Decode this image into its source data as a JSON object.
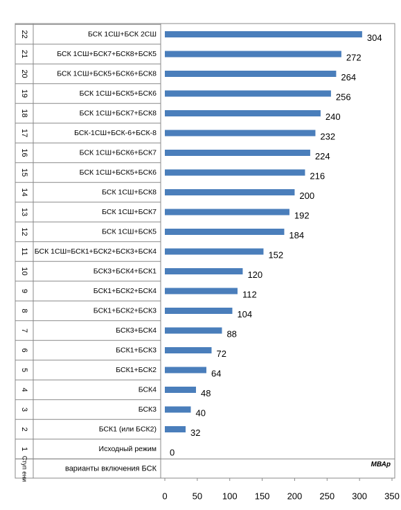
{
  "chart_data": {
    "type": "bar",
    "orientation": "horizontal",
    "stage_header": "Ступ ени",
    "category_header": "варианты включения БСК",
    "value_label": "МВАр",
    "stages": [
      "1",
      "2",
      "3",
      "4",
      "5",
      "6",
      "7",
      "8",
      "9",
      "10",
      "11",
      "12",
      "13",
      "14",
      "15",
      "16",
      "17",
      "18",
      "19",
      "20",
      "21",
      "22"
    ],
    "categories": [
      "Исходный режим",
      "БСК1 (или БСК2)",
      "БСК3",
      "БСК4",
      "БСК1+БСК2",
      "БСК1+БСК3",
      "БСК3+БСК4",
      "БСК1+БСК2+БСК3",
      "БСК1+БСК2+БСК4",
      "БСК3+БСК4+БСК1",
      "БСК 1СШ=БСК1+БСК2+БСК3+БСК4",
      "БСК 1СШ+БСК5",
      "БСК 1СШ+БСК7",
      "БСК 1СШ+БСК8",
      "БСК 1СШ+БСК5+БСК6",
      "БСК 1СШ+БСК6+БСК7",
      "БСК-1СШ+БСК-6+БСК-8",
      "БСК 1СШ+БСК7+БСК8",
      "БСК 1СШ+БСК5+БСК6",
      "БСК 1СШ+БСК5+БСК6+БСК8",
      "БСК 1СШ+БСК7+БСК8+БСК5",
      "БСК 1СШ+БСК 2СШ"
    ],
    "values": [
      0,
      32,
      40,
      48,
      64,
      72,
      88,
      104,
      112,
      120,
      152,
      184,
      192,
      200,
      216,
      224,
      232,
      240,
      256,
      264,
      272,
      304
    ],
    "color": "#4a7ebb",
    "xlim": [
      0,
      350
    ],
    "xticks": [
      0,
      50,
      100,
      150,
      200,
      250,
      300,
      350
    ]
  }
}
